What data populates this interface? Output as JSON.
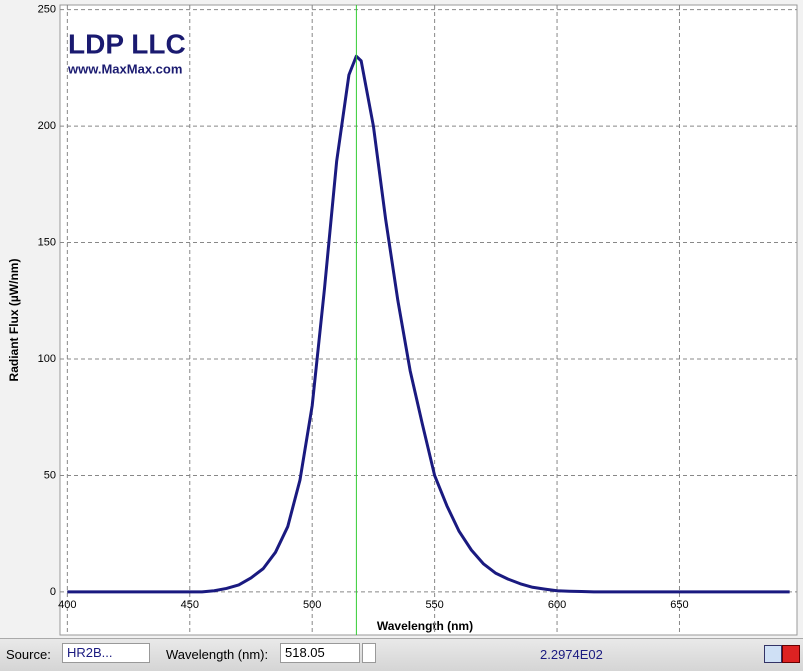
{
  "chart_data": {
    "type": "line",
    "logo": "LDP LLC",
    "logo_url": "www.MaxMax.com",
    "x_label": "Wavelength (nm)",
    "y_label": "Radiant Flux (µW/nm)",
    "x": [
      400,
      405,
      410,
      415,
      420,
      425,
      430,
      435,
      440,
      445,
      450,
      455,
      460,
      465,
      470,
      475,
      480,
      485,
      490,
      495,
      500,
      505,
      510,
      515,
      518,
      520,
      525,
      530,
      535,
      540,
      545,
      550,
      555,
      560,
      565,
      570,
      575,
      580,
      585,
      590,
      595,
      600,
      605,
      610,
      615,
      620,
      625,
      630,
      635,
      640,
      645,
      650,
      655,
      660,
      665,
      670,
      675,
      680,
      685,
      690,
      695
    ],
    "series": [
      {
        "color": "#1a1a80",
        "values": [
          0,
          0,
          0,
          0,
          0,
          0,
          0,
          0,
          0,
          0,
          0,
          0,
          0.5,
          1.5,
          3,
          6,
          10,
          17,
          28,
          48,
          80,
          130,
          185,
          222,
          230,
          228,
          200,
          160,
          125,
          95,
          72,
          50,
          37,
          26,
          18,
          12,
          8,
          5.5,
          3.5,
          2,
          1.2,
          0.5,
          0.3,
          0.2,
          0,
          0,
          0,
          0,
          0,
          0,
          0,
          0,
          0,
          0,
          0,
          0,
          0,
          0,
          0,
          0,
          0
        ]
      }
    ],
    "xlim": [
      397,
      698
    ],
    "ylim": [
      -18.5,
      252
    ],
    "xticks": [
      400,
      450,
      500,
      550,
      600,
      650
    ],
    "yticks": [
      0,
      50,
      100,
      150,
      200,
      250
    ],
    "grid": true,
    "cursor_color": "#33cc33"
  },
  "toolbar": {
    "source_label": "Source:",
    "source": "HR2B...",
    "wavelength_label": "Wavelength (nm):",
    "wavelength": 518.05,
    "reading": "2.2974E02"
  }
}
